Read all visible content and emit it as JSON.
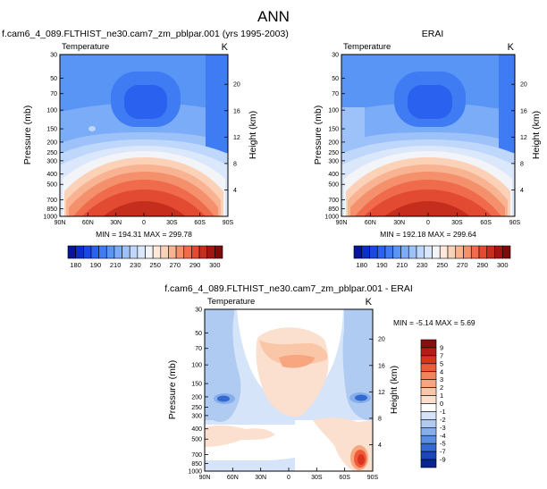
{
  "page_title": "ANN",
  "chart_data": [
    {
      "type": "heatmap",
      "title": "f.cam6_4_089.FLTHIST_ne30.cam7_zm_pblpar.001 (yrs 1995-2003)",
      "left_label": "Temperature",
      "right_label": "K",
      "ylabel": "Pressure (mb)",
      "y2label": "Height (km)",
      "x_ticks": [
        "90N",
        "60N",
        "30N",
        "0",
        "30S",
        "60S",
        "90S"
      ],
      "y_ticks": [
        "30",
        "50",
        "70",
        "100",
        "150",
        "200",
        "250",
        "300",
        "400",
        "500",
        "700",
        "850",
        "1000"
      ],
      "y2_ticks": [
        "20",
        "16",
        "12",
        "8",
        "4"
      ],
      "ylim": [
        1000,
        30
      ],
      "xlim": [
        90,
        -90
      ],
      "min_text": "MIN = 194.31  MAX = 299.78",
      "min": 194.31,
      "max": 299.78,
      "colorbar": {
        "orientation": "horizontal",
        "labels": [
          "180",
          "190",
          "210",
          "230",
          "250",
          "270",
          "290",
          "300"
        ],
        "colors": [
          "#06159c",
          "#0a30c7",
          "#1a47de",
          "#2a61ee",
          "#3f7cf3",
          "#5995f5",
          "#7aacf7",
          "#9dc2f9",
          "#bfd7fb",
          "#dbe8fc",
          "#f2f4f7",
          "#fde8da",
          "#fbd1b8",
          "#f8b392",
          "#f5906d",
          "#f06b4c",
          "#e24a31",
          "#c52e1d",
          "#a01611",
          "#7e0b0c"
        ]
      }
    },
    {
      "type": "heatmap",
      "title": "ERAI",
      "left_label": "Temperature",
      "right_label": "K",
      "ylabel": "Pressure (mb)",
      "y2label": "Height (km)",
      "x_ticks": [
        "90N",
        "60N",
        "30N",
        "0",
        "30S",
        "60S",
        "90S"
      ],
      "y_ticks": [
        "30",
        "50",
        "70",
        "100",
        "150",
        "200",
        "250",
        "300",
        "400",
        "500",
        "700",
        "850",
        "1000"
      ],
      "y2_ticks": [
        "20",
        "16",
        "12",
        "8",
        "4"
      ],
      "ylim": [
        1000,
        30
      ],
      "xlim": [
        90,
        -90
      ],
      "min_text": "MIN = 192.18  MAX = 299.64",
      "min": 192.18,
      "max": 299.64,
      "colorbar": {
        "orientation": "horizontal",
        "labels": [
          "180",
          "190",
          "210",
          "230",
          "250",
          "270",
          "290",
          "300"
        ],
        "colors": [
          "#06159c",
          "#0a30c7",
          "#1a47de",
          "#2a61ee",
          "#3f7cf3",
          "#5995f5",
          "#7aacf7",
          "#9dc2f9",
          "#bfd7fb",
          "#dbe8fc",
          "#f2f4f7",
          "#fde8da",
          "#fbd1b8",
          "#f8b392",
          "#f5906d",
          "#f06b4c",
          "#e24a31",
          "#c52e1d",
          "#a01611",
          "#7e0b0c"
        ]
      }
    },
    {
      "type": "heatmap",
      "title": "f.cam6_4_089.FLTHIST_ne30.cam7_zm_pblpar.001 - ERAI",
      "left_label": "Temperature",
      "right_label": "K",
      "ylabel": "Pressure (mb)",
      "y2label": "Height (km)",
      "x_ticks": [
        "90N",
        "60N",
        "30N",
        "0",
        "30S",
        "60S",
        "90S"
      ],
      "y_ticks": [
        "30",
        "50",
        "70",
        "100",
        "150",
        "200",
        "250",
        "300",
        "400",
        "500",
        "700",
        "850",
        "1000"
      ],
      "y2_ticks": [
        "20",
        "16",
        "12",
        "8",
        "4"
      ],
      "ylim": [
        1000,
        30
      ],
      "xlim": [
        90,
        -90
      ],
      "min_text": "MIN = -5.14  MAX =   5.69",
      "min": -5.14,
      "max": 5.69,
      "colorbar": {
        "orientation": "vertical",
        "labels": [
          "9",
          "7",
          "5",
          "4",
          "3",
          "2",
          "1",
          "0",
          "-1",
          "-2",
          "-3",
          "-4",
          "-5",
          "-7",
          "-9"
        ],
        "colors": [
          "#8c0d0d",
          "#b51d14",
          "#d9341f",
          "#ee5a3a",
          "#f4825b",
          "#f7a680",
          "#f9c6a8",
          "#fbe0cf",
          "#ffffff",
          "#d5e4f8",
          "#b0cbf2",
          "#86aeea",
          "#5b8ee0",
          "#3468d2",
          "#1a45bd",
          "#0a2593"
        ]
      }
    }
  ]
}
